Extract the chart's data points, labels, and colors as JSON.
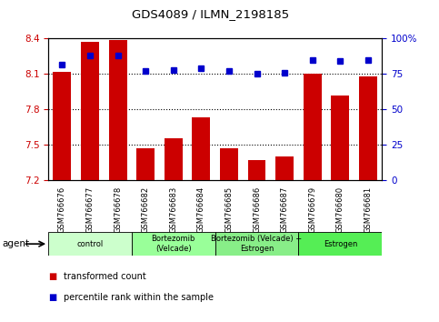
{
  "title": "GDS4089 / ILMN_2198185",
  "samples": [
    "GSM766676",
    "GSM766677",
    "GSM766678",
    "GSM766682",
    "GSM766683",
    "GSM766684",
    "GSM766685",
    "GSM766686",
    "GSM766687",
    "GSM766679",
    "GSM766680",
    "GSM766681"
  ],
  "bar_values": [
    8.12,
    8.37,
    8.39,
    7.47,
    7.56,
    7.73,
    7.47,
    7.37,
    7.4,
    8.1,
    7.92,
    8.08
  ],
  "dot_values": [
    82,
    88,
    88,
    77,
    78,
    79,
    77,
    75,
    76,
    85,
    84,
    85
  ],
  "bar_color": "#cc0000",
  "dot_color": "#0000cc",
  "ylim_left": [
    7.2,
    8.4
  ],
  "ylim_right": [
    0,
    100
  ],
  "yticks_left": [
    7.2,
    7.5,
    7.8,
    8.1,
    8.4
  ],
  "yticks_right": [
    0,
    25,
    50,
    75,
    100
  ],
  "ytick_labels_right": [
    "0",
    "25",
    "50",
    "75",
    "100%"
  ],
  "hlines": [
    7.5,
    7.8,
    8.1
  ],
  "groups": [
    {
      "label": "control",
      "start": 0,
      "end": 3,
      "color": "#ccffcc"
    },
    {
      "label": "Bortezomib\n(Velcade)",
      "start": 3,
      "end": 6,
      "color": "#99ff99"
    },
    {
      "label": "Bortezomib (Velcade) +\nEstrogen",
      "start": 6,
      "end": 9,
      "color": "#88ee88"
    },
    {
      "label": "Estrogen",
      "start": 9,
      "end": 12,
      "color": "#55ee55"
    }
  ],
  "agent_label": "agent",
  "legend_bar_label": "transformed count",
  "legend_dot_label": "percentile rank within the sample",
  "bar_color_legend": "#cc0000",
  "dot_color_legend": "#0000cc",
  "tick_label_color_left": "#cc0000",
  "tick_label_color_right": "#0000cc"
}
